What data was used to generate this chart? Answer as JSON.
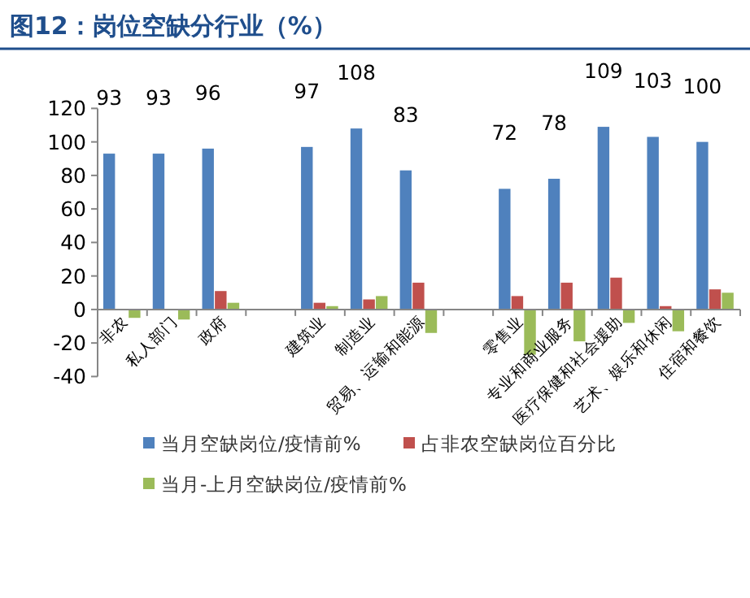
{
  "chart_data": {
    "type": "bar",
    "title": "图12：岗位空缺分行业（%）",
    "categories": [
      "非农",
      "私人部门",
      "政府",
      null,
      "建筑业",
      "制造业",
      "贸易、运输和能源",
      null,
      "零售业",
      "专业和商业服务",
      "医疗保健和社会援助",
      "艺术、娱乐和休闲",
      "住宿和餐饮"
    ],
    "series": [
      {
        "name": "当月空缺岗位/疫情前%",
        "color": "#4f81bd",
        "values": [
          93,
          93,
          96,
          null,
          97,
          108,
          83,
          null,
          72,
          78,
          109,
          103,
          100
        ],
        "value_labels": [
          "93",
          "93",
          "96",
          null,
          "97",
          "108",
          "83",
          null,
          "72",
          "78",
          "109",
          "103",
          "100"
        ]
      },
      {
        "name": "占非农空缺岗位百分比",
        "color": "#c0504d",
        "values": [
          null,
          null,
          11,
          null,
          4,
          6,
          16,
          null,
          8,
          16,
          19,
          2,
          12
        ]
      },
      {
        "name": "当月-上月空缺岗位/疫情前%",
        "color": "#9bbb59",
        "values": [
          -5,
          -6,
          4,
          null,
          2,
          8,
          -14,
          null,
          -27,
          -19,
          -8,
          -13,
          10
        ]
      }
    ],
    "ylim": [
      -40,
      120
    ],
    "yticks": [
      -40,
      -20,
      0,
      20,
      40,
      60,
      80,
      100,
      120
    ],
    "grid": false,
    "legend": "bottom"
  }
}
